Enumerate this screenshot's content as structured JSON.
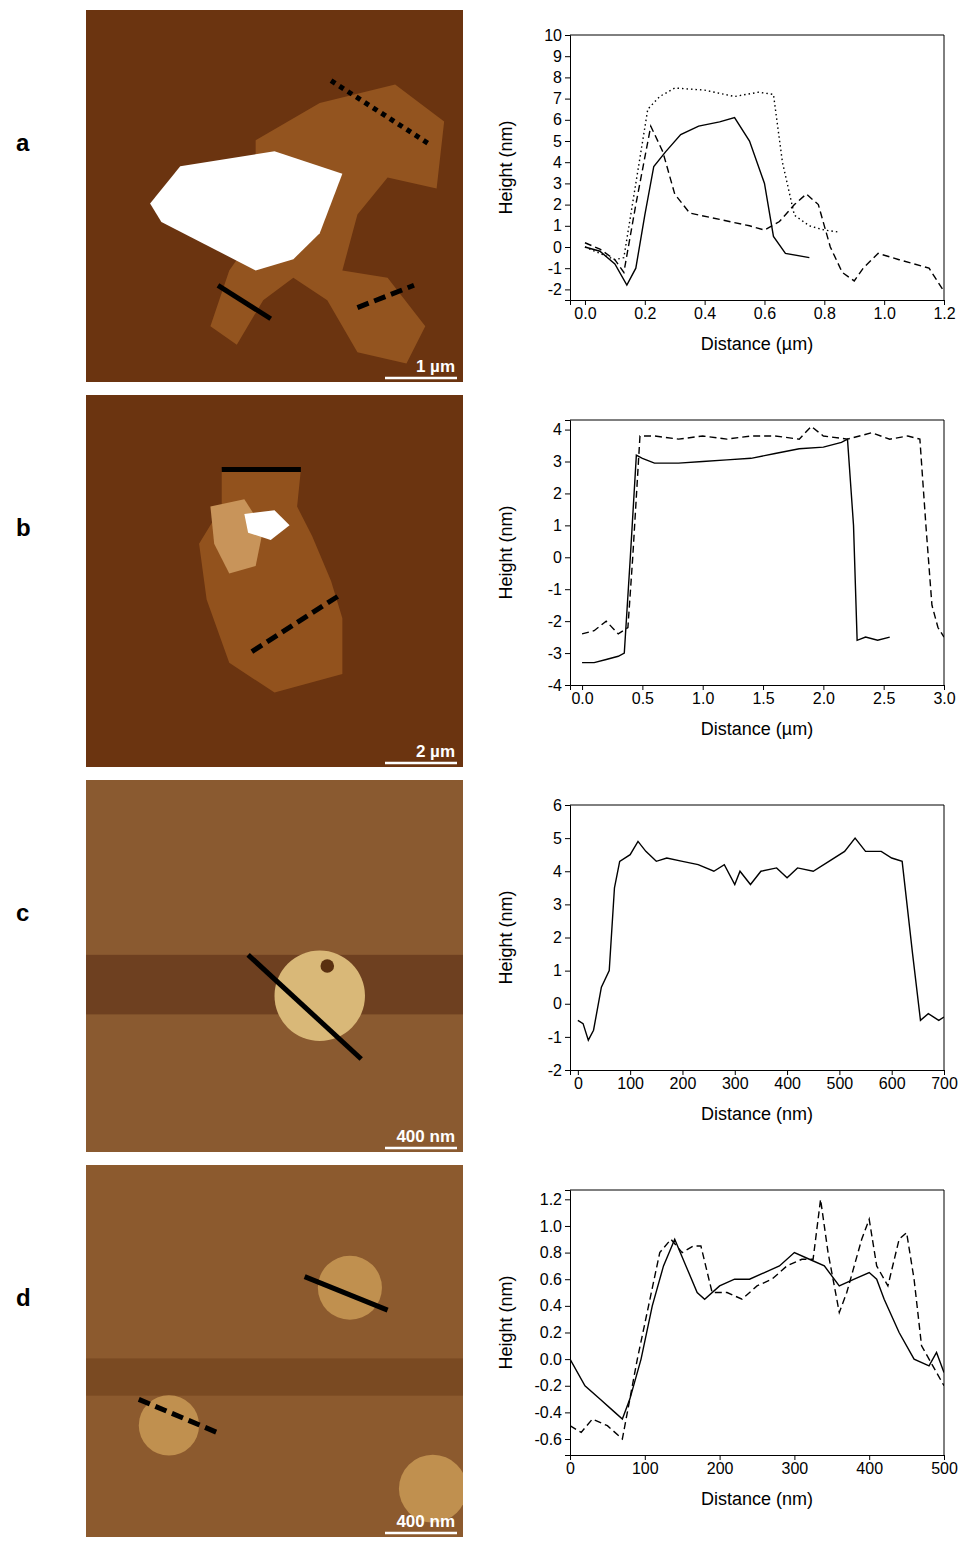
{
  "chart_data": [
    {
      "type": "line",
      "x_label": "Distance (µm)",
      "y_label": "Height (nm)",
      "grid": false,
      "xlim": [
        -0.05,
        1.2
      ],
      "ylim": [
        -2.5,
        10
      ],
      "xticks": [
        {
          "value": 0,
          "label": "0.0"
        },
        0.2,
        0.4,
        0.6,
        0.8,
        {
          "value": 1,
          "label": "1.0"
        },
        1.2
      ],
      "yticks": [
        -2,
        -1,
        0,
        1,
        2,
        3,
        4,
        5,
        6,
        7,
        8,
        9,
        10
      ],
      "series": [
        {
          "line_style": "solid",
          "color": "#000000",
          "x": [
            0,
            0.05,
            0.1,
            0.14,
            0.17,
            0.2,
            0.23,
            0.27,
            0.32,
            0.38,
            0.45,
            0.5,
            0.55,
            0.6,
            0.63,
            0.67,
            0.75
          ],
          "values": [
            0,
            -0.2,
            -0.8,
            -1.8,
            -1,
            1.5,
            3.8,
            4.5,
            5.3,
            5.7,
            5.9,
            6.1,
            5,
            3,
            0.5,
            -0.3,
            -0.5
          ]
        },
        {
          "line_style": "dashed",
          "color": "#000000",
          "x": [
            0,
            0.05,
            0.1,
            0.13,
            0.17,
            0.22,
            0.26,
            0.3,
            0.35,
            0.45,
            0.55,
            0.6,
            0.65,
            0.7,
            0.74,
            0.78,
            0.82,
            0.86,
            0.9,
            0.93,
            0.98,
            1.05,
            1.1,
            1.15,
            1.2
          ],
          "values": [
            0.2,
            -0.1,
            -0.6,
            -1.2,
            2,
            5.7,
            4.5,
            2.5,
            1.6,
            1.3,
            1,
            0.8,
            1.2,
            2,
            2.5,
            2,
            0,
            -1.2,
            -1.6,
            -1,
            -0.3,
            -0.6,
            -0.8,
            -1,
            -2.1
          ]
        },
        {
          "line_style": "dotted",
          "color": "#000000",
          "x": [
            0,
            0.05,
            0.1,
            0.13,
            0.17,
            0.21,
            0.25,
            0.3,
            0.4,
            0.5,
            0.58,
            0.63,
            0.66,
            0.7,
            0.75,
            0.8,
            0.85
          ],
          "values": [
            0,
            -0.3,
            -0.6,
            -0.5,
            3,
            6.5,
            7.1,
            7.5,
            7.4,
            7.1,
            7.3,
            7.2,
            4,
            1.5,
            1,
            0.8,
            0.7
          ]
        }
      ]
    },
    {
      "type": "line",
      "x_label": "Distance (µm)",
      "y_label": "Height (nm)",
      "grid": false,
      "xlim": [
        -0.1,
        3
      ],
      "ylim": [
        -4,
        4.3
      ],
      "xticks": [
        {
          "value": 0,
          "label": "0.0"
        },
        0.5,
        {
          "value": 1,
          "label": "1.0"
        },
        1.5,
        {
          "value": 2,
          "label": "2.0"
        },
        2.5,
        {
          "value": 3,
          "label": "3.0"
        }
      ],
      "yticks": [
        -4,
        -3,
        -2,
        -1,
        0,
        1,
        2,
        3,
        4
      ],
      "series": [
        {
          "line_style": "solid",
          "color": "#000000",
          "x": [
            0,
            0.1,
            0.2,
            0.3,
            0.35,
            0.4,
            0.45,
            0.5,
            0.6,
            0.8,
            1,
            1.2,
            1.4,
            1.6,
            1.8,
            2,
            2.15,
            2.2,
            2.25,
            2.28,
            2.35,
            2.45,
            2.55
          ],
          "values": [
            -3.3,
            -3.3,
            -3.2,
            -3.1,
            -3,
            0,
            3.2,
            3.1,
            2.95,
            2.95,
            3,
            3.05,
            3.1,
            3.25,
            3.4,
            3.45,
            3.6,
            3.7,
            1,
            -2.6,
            -2.5,
            -2.6,
            -2.5
          ]
        },
        {
          "line_style": "dashed",
          "color": "#000000",
          "x": [
            0,
            0.1,
            0.2,
            0.3,
            0.38,
            0.42,
            0.48,
            0.6,
            0.8,
            1,
            1.2,
            1.4,
            1.6,
            1.8,
            1.9,
            2,
            2.2,
            2.4,
            2.55,
            2.7,
            2.8,
            2.85,
            2.9,
            2.95,
            3
          ],
          "values": [
            -2.4,
            -2.3,
            -2,
            -2.4,
            -2.2,
            0,
            3.8,
            3.8,
            3.7,
            3.8,
            3.7,
            3.8,
            3.8,
            3.7,
            4.1,
            3.8,
            3.7,
            3.9,
            3.7,
            3.8,
            3.7,
            1,
            -1.5,
            -2.2,
            -2.5
          ]
        }
      ]
    },
    {
      "type": "line",
      "x_label": "Distance (nm)",
      "y_label": "Height (nm)",
      "grid": false,
      "xlim": [
        -15,
        700
      ],
      "ylim": [
        -2,
        6
      ],
      "xticks": [
        0,
        100,
        200,
        300,
        400,
        500,
        600,
        700
      ],
      "yticks": [
        -2,
        -1,
        0,
        1,
        2,
        3,
        4,
        5,
        6
      ],
      "series": [
        {
          "line_style": "solid",
          "color": "#000000",
          "x": [
            0,
            10,
            20,
            30,
            45,
            60,
            70,
            80,
            100,
            115,
            130,
            150,
            170,
            200,
            230,
            260,
            280,
            300,
            310,
            330,
            350,
            380,
            400,
            420,
            450,
            480,
            510,
            530,
            550,
            580,
            600,
            620,
            640,
            655,
            670,
            690,
            700
          ],
          "values": [
            -0.5,
            -0.6,
            -1.1,
            -0.8,
            0.5,
            1,
            3.5,
            4.3,
            4.5,
            4.9,
            4.6,
            4.3,
            4.4,
            4.3,
            4.2,
            4,
            4.2,
            3.6,
            4,
            3.6,
            4,
            4.1,
            3.8,
            4.1,
            4,
            4.3,
            4.6,
            5,
            4.6,
            4.6,
            4.4,
            4.3,
            1.5,
            -0.5,
            -0.3,
            -0.5,
            -0.4
          ]
        }
      ]
    },
    {
      "type": "line",
      "x_label": "Distance (nm)",
      "y_label": "Height (nm)",
      "grid": false,
      "xlim": [
        0,
        500
      ],
      "ylim": [
        -0.72,
        1.27
      ],
      "xticks": [
        0,
        100,
        200,
        300,
        400,
        500
      ],
      "yticks": [
        -0.6,
        -0.4,
        -0.2,
        {
          "value": 0,
          "label": "0.0"
        },
        0.2,
        0.4,
        0.6,
        0.8,
        {
          "value": 1,
          "label": "1.0"
        },
        1.2
      ],
      "series": [
        {
          "line_style": "solid",
          "color": "#000000",
          "x": [
            0,
            20,
            40,
            60,
            70,
            80,
            95,
            110,
            125,
            140,
            155,
            170,
            180,
            200,
            220,
            240,
            260,
            280,
            300,
            320,
            340,
            360,
            380,
            400,
            410,
            420,
            440,
            460,
            480,
            490,
            500
          ],
          "values": [
            0,
            -0.2,
            -0.3,
            -0.4,
            -0.45,
            -0.3,
            0,
            0.4,
            0.7,
            0.9,
            0.7,
            0.5,
            0.45,
            0.55,
            0.6,
            0.6,
            0.65,
            0.7,
            0.8,
            0.75,
            0.7,
            0.55,
            0.6,
            0.65,
            0.6,
            0.45,
            0.2,
            0,
            -0.05,
            0.05,
            -0.1
          ]
        },
        {
          "line_style": "dashed",
          "color": "#000000",
          "x": [
            0,
            15,
            30,
            50,
            70,
            90,
            105,
            120,
            135,
            150,
            165,
            175,
            190,
            210,
            230,
            250,
            270,
            290,
            310,
            325,
            335,
            345,
            360,
            370,
            390,
            400,
            410,
            425,
            440,
            450,
            460,
            470,
            480,
            490,
            500
          ],
          "values": [
            -0.5,
            -0.55,
            -0.45,
            -0.5,
            -0.6,
            0,
            0.4,
            0.8,
            0.9,
            0.8,
            0.85,
            0.85,
            0.5,
            0.5,
            0.45,
            0.55,
            0.6,
            0.7,
            0.75,
            0.75,
            1.2,
            0.8,
            0.35,
            0.5,
            0.9,
            1.05,
            0.7,
            0.55,
            0.9,
            0.95,
            0.6,
            0.1,
            0,
            -0.1,
            -0.2
          ]
        }
      ]
    }
  ],
  "images": [
    {
      "panel": "a",
      "scale_bar": "1 µm"
    },
    {
      "panel": "b",
      "scale_bar": "2 µm"
    },
    {
      "panel": "c",
      "scale_bar": "400 nm"
    },
    {
      "panel": "d",
      "scale_bar": "400 nm"
    }
  ]
}
